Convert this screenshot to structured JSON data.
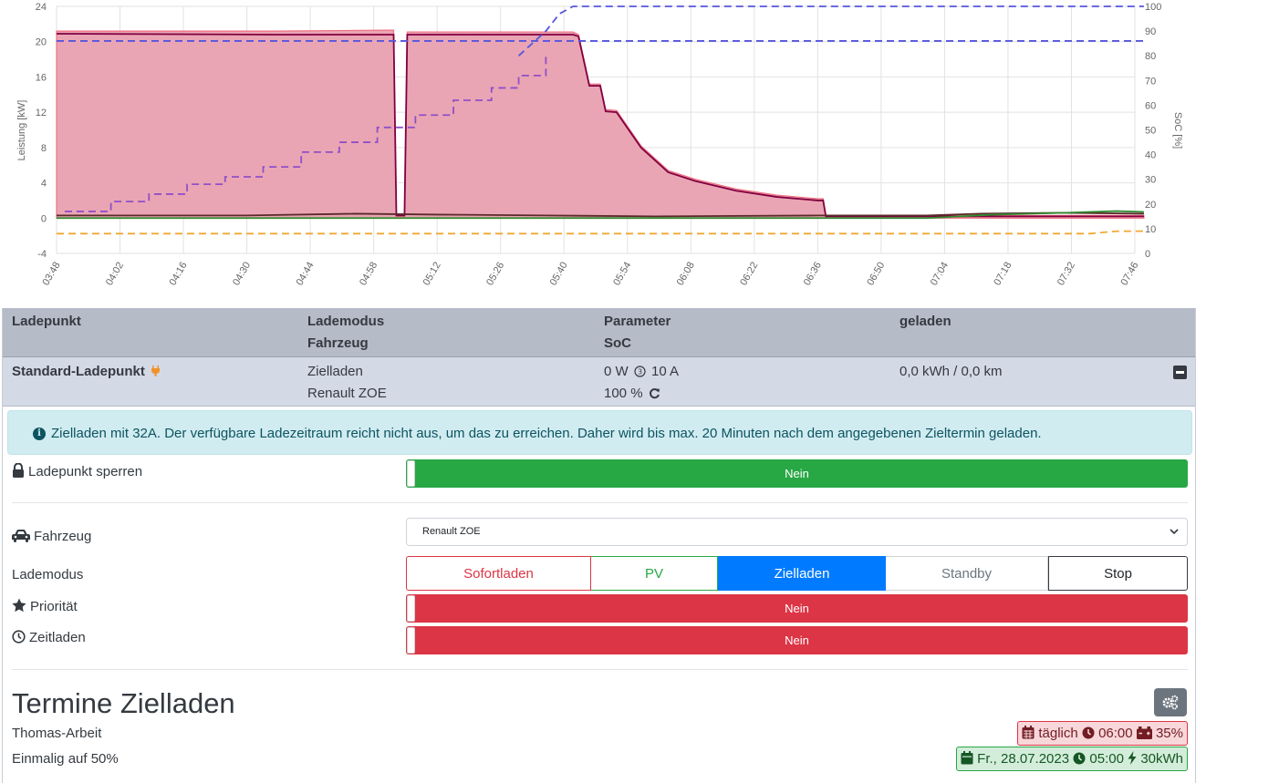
{
  "chart_data": {
    "type": "area",
    "title": "",
    "xlabel": "",
    "ylabel": "Leistung [kW]",
    "y2label": "SoC [%]",
    "x_ticks": [
      "03:48",
      "04:02",
      "04:16",
      "04:30",
      "04:44",
      "04:58",
      "05:12",
      "05:26",
      "05:40",
      "05:54",
      "06:08",
      "06:22",
      "06:36",
      "06:50",
      "07:04",
      "07:18",
      "07:32",
      "07:46"
    ],
    "y_ticks": [
      -4,
      0,
      4,
      8,
      12,
      16,
      20,
      24
    ],
    "y2_ticks": [
      0,
      10,
      20,
      30,
      40,
      50,
      60,
      70,
      80,
      90,
      100
    ],
    "ylim": [
      -4,
      24
    ],
    "y2lim": [
      0,
      100
    ],
    "grid": true,
    "series": [
      {
        "kind": "area",
        "color": "#e9a0b0",
        "points": [
          [
            3.8,
            21.2
          ],
          [
            4.6,
            21.2
          ],
          [
            5.0,
            21.3
          ],
          [
            5.04,
            21.3
          ],
          [
            5.05,
            0.2
          ],
          [
            5.08,
            0.2
          ],
          [
            5.09,
            21.1
          ],
          [
            5.7,
            21.1
          ],
          [
            5.72,
            20.8
          ],
          [
            5.76,
            15.2
          ],
          [
            5.8,
            15.2
          ],
          [
            5.82,
            12.3
          ],
          [
            5.86,
            12.2
          ],
          [
            5.95,
            8.2
          ],
          [
            6.05,
            5.4
          ],
          [
            6.15,
            4.4
          ],
          [
            6.3,
            3.3
          ],
          [
            6.45,
            2.6
          ],
          [
            6.6,
            2.2
          ],
          [
            6.62,
            2.2
          ],
          [
            6.63,
            0.3
          ],
          [
            7.8,
            0.3
          ]
        ]
      },
      {
        "kind": "line",
        "color": "#800040",
        "points": [
          [
            3.8,
            20.9
          ],
          [
            4.6,
            20.8
          ],
          [
            5.0,
            20.8
          ],
          [
            5.04,
            20.8
          ],
          [
            5.05,
            0.3
          ],
          [
            5.08,
            0.3
          ],
          [
            5.09,
            20.8
          ],
          [
            5.7,
            20.8
          ],
          [
            5.72,
            20.6
          ],
          [
            5.76,
            15.0
          ],
          [
            5.8,
            15.0
          ],
          [
            5.82,
            12.1
          ],
          [
            5.86,
            12.0
          ],
          [
            5.95,
            8.0
          ],
          [
            6.05,
            5.2
          ],
          [
            6.15,
            4.2
          ],
          [
            6.3,
            3.1
          ],
          [
            6.45,
            2.4
          ],
          [
            6.6,
            2.0
          ],
          [
            6.62,
            2.0
          ],
          [
            6.63,
            0.2
          ],
          [
            7.8,
            0.2
          ]
        ]
      },
      {
        "kind": "line",
        "color": "#5a2a2a",
        "points": [
          [
            3.8,
            0.3
          ],
          [
            4.5,
            0.3
          ],
          [
            4.9,
            0.5
          ],
          [
            5.2,
            0.4
          ],
          [
            5.6,
            0.3
          ],
          [
            6.0,
            0.2
          ],
          [
            6.6,
            0.3
          ],
          [
            7.0,
            0.3
          ],
          [
            7.2,
            0.5
          ],
          [
            7.5,
            0.6
          ],
          [
            7.8,
            0.5
          ]
        ]
      },
      {
        "kind": "line",
        "color": "#2e8b2e",
        "points": [
          [
            3.8,
            0.0
          ],
          [
            7.0,
            0.0
          ],
          [
            7.25,
            0.4
          ],
          [
            7.5,
            0.6
          ],
          [
            7.7,
            0.8
          ],
          [
            7.8,
            0.7
          ]
        ]
      },
      {
        "kind": "dashed",
        "color": "#f0a830",
        "axis": "soc",
        "points": [
          [
            3.8,
            8
          ],
          [
            7.6,
            8
          ],
          [
            7.7,
            9
          ],
          [
            7.8,
            9
          ]
        ]
      },
      {
        "kind": "dashed",
        "color": "#5555dd",
        "axis": "soc",
        "points": [
          [
            3.8,
            86
          ],
          [
            7.8,
            86
          ]
        ]
      },
      {
        "kind": "dashed",
        "color": "#5555dd",
        "axis": "soc",
        "points": [
          [
            5.5,
            80
          ],
          [
            5.6,
            90
          ],
          [
            5.65,
            97
          ],
          [
            5.7,
            100
          ],
          [
            7.8,
            100
          ]
        ]
      },
      {
        "kind": "dashed-step",
        "color": "#9050c8",
        "axis": "soc",
        "points": [
          [
            3.83,
            17
          ],
          [
            4.0,
            21
          ],
          [
            4.14,
            24
          ],
          [
            4.28,
            28
          ],
          [
            4.42,
            31
          ],
          [
            4.56,
            35
          ],
          [
            4.7,
            41
          ],
          [
            4.84,
            45
          ],
          [
            4.98,
            51
          ],
          [
            5.12,
            56
          ],
          [
            5.26,
            62
          ],
          [
            5.4,
            67
          ],
          [
            5.5,
            72
          ],
          [
            5.6,
            80
          ]
        ]
      }
    ]
  },
  "table": {
    "headers": {
      "ladepunkt": "Ladepunkt",
      "lademodus": "Lademodus",
      "fahrzeug": "Fahrzeug",
      "parameter": "Parameter",
      "soc": "SoC",
      "geladen": "geladen"
    },
    "row": {
      "name": "Standard-Ladepunkt",
      "mode": "Zielladen",
      "vehicle": "Renault ZOE",
      "power": "0 W",
      "phases": "10 A",
      "soc": "100 %",
      "charged": "0,0 kWh / 0,0 km"
    }
  },
  "alert": {
    "text": "Zielladen mit 32A. Der verfügbare Ladezeitraum reicht nicht aus, um das zu erreichen. Daher wird bis max. 20 Minuten nach dem angegebenen Zieltermin geladen."
  },
  "settings": {
    "lock_label": "Ladepunkt sperren",
    "lock_value": "Nein",
    "vehicle_label": "Fahrzeug",
    "vehicle_selected": "Renault ZOE",
    "mode_label": "Lademodus",
    "modes": [
      "Sofortladen",
      "PV",
      "Zielladen",
      "Standby",
      "Stop"
    ],
    "priority_label": "Priorität",
    "priority_value": "Nein",
    "timed_label": "Zeitladen",
    "timed_value": "Nein"
  },
  "schedules": {
    "title": "Termine Zielladen",
    "items": [
      {
        "name": "Thomas-Arbeit",
        "freq": "täglich",
        "time": "06:00",
        "target": "35%"
      },
      {
        "name": "Einmalig auf 50%",
        "date": "Fr., 28.07.2023",
        "time": "05:00",
        "target": "30kWh"
      }
    ]
  }
}
